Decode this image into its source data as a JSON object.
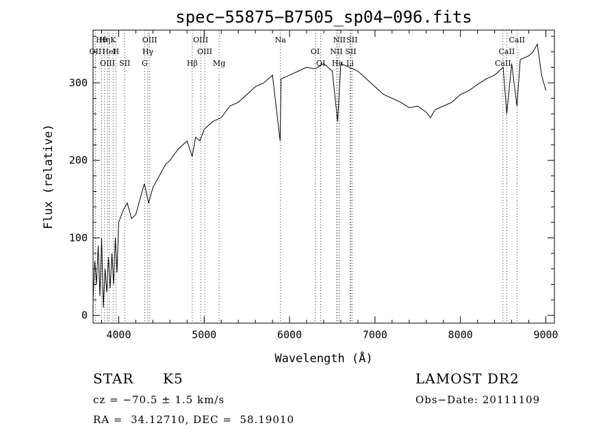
{
  "chart_data": {
    "type": "line",
    "title": "spec−55875−B7505_sp04−096.fits",
    "xlabel": "Wavelength (Å)",
    "ylabel": "Flux (relative)",
    "xlim": [
      3700,
      9100
    ],
    "ylim": [
      -10,
      368
    ],
    "xticks": [
      4000,
      5000,
      6000,
      7000,
      8000,
      9000
    ],
    "yticks": [
      0,
      100,
      200,
      300
    ],
    "grid": false,
    "legend": "none",
    "series": [
      {
        "x": [
          3700,
          3720,
          3740,
          3760,
          3780,
          3800,
          3820,
          3840,
          3860,
          3880,
          3900,
          3920,
          3940,
          3960,
          3980,
          4000,
          4050,
          4100,
          4150,
          4200,
          4250,
          4300,
          4350,
          4400,
          4450,
          4500,
          4550,
          4600,
          4700,
          4800,
          4860,
          4900,
          4950,
          5000,
          5100,
          5200,
          5300,
          5400,
          5500,
          5600,
          5700,
          5800,
          5890,
          5900,
          6000,
          6100,
          6200,
          6300,
          6400,
          6500,
          6563,
          6600,
          6700,
          6800,
          6900,
          7000,
          7100,
          7200,
          7300,
          7400,
          7500,
          7600,
          7650,
          7700,
          7800,
          7900,
          8000,
          8100,
          8200,
          8300,
          8400,
          8450,
          8500,
          8542,
          8600,
          8662,
          8700,
          8800,
          8850,
          8900,
          8950,
          9000
        ],
        "y": [
          20,
          70,
          40,
          90,
          25,
          100,
          10,
          60,
          30,
          75,
          35,
          80,
          40,
          100,
          55,
          120,
          135,
          145,
          125,
          130,
          150,
          170,
          145,
          165,
          175,
          185,
          195,
          200,
          215,
          225,
          205,
          230,
          225,
          240,
          250,
          255,
          270,
          275,
          285,
          295,
          300,
          310,
          225,
          305,
          310,
          315,
          320,
          318,
          325,
          315,
          250,
          325,
          320,
          315,
          305,
          295,
          285,
          280,
          275,
          268,
          270,
          262,
          255,
          265,
          270,
          275,
          285,
          290,
          298,
          305,
          310,
          315,
          320,
          260,
          325,
          270,
          330,
          335,
          340,
          350,
          310,
          290
        ]
      }
    ],
    "lines": [
      {
        "label": "Hθ",
        "x": 3798
      },
      {
        "label": "OII",
        "x": 3727
      },
      {
        "label": "OIII",
        "x": 3869
      },
      {
        "label": "Hη",
        "x": 3835
      },
      {
        "label": "HeI",
        "x": 3889
      },
      {
        "label": "SII",
        "x": 4070
      },
      {
        "label": "K",
        "x": 3934
      },
      {
        "label": "H",
        "x": 3968
      },
      {
        "label": "G",
        "x": 4304
      },
      {
        "label": "OIII",
        "x": 4363
      },
      {
        "label": "Hγ",
        "x": 4341
      },
      {
        "label": "Hβ",
        "x": 4861
      },
      {
        "label": "OIII",
        "x": 4959
      },
      {
        "label": "OIII",
        "x": 5007
      },
      {
        "label": "Mg",
        "x": 5175
      },
      {
        "label": "Na",
        "x": 5893
      },
      {
        "label": "OI",
        "x": 6300
      },
      {
        "label": "OI",
        "x": 6364
      },
      {
        "label": "NII",
        "x": 6583
      },
      {
        "label": "SII",
        "x": 6716
      },
      {
        "label": "Hα",
        "x": 6563
      },
      {
        "label": "SII",
        "x": 6731
      },
      {
        "label": "NII",
        "x": 6548
      },
      {
        "label": "Li",
        "x": 6708
      },
      {
        "label": "CaII",
        "x": 8662
      },
      {
        "label": "CaII",
        "x": 8542
      },
      {
        "label": "CaII",
        "x": 8498
      }
    ]
  },
  "info": {
    "class_label": "STAR",
    "subclass": "K5",
    "survey": "LAMOST DR2",
    "cz": "cz = −70.5 ± 1.5 km/s",
    "obs_date": "Obs−Date: 20111109",
    "coords": "RA =  34.12710, DEC =  58.19010"
  }
}
